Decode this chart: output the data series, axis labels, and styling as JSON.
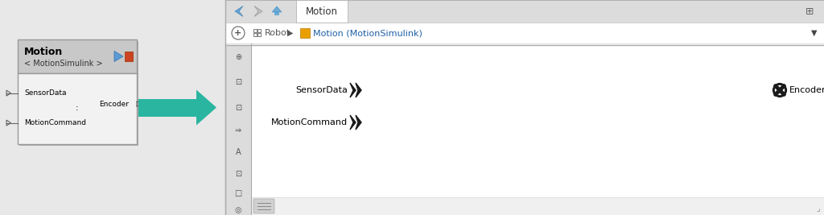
{
  "bg_color": "#e8e8e8",
  "block_title": "Motion",
  "block_subtitle": "< MotionSimulink >",
  "block_inputs": [
    "SensorData",
    "MotionCommand"
  ],
  "block_output": "Encoder",
  "arrow_color": "#2ab5a0",
  "toolbar_tab": "Motion",
  "right_inports": [
    "SensorData",
    "MotionCommand"
  ],
  "right_outport": "Encoder",
  "toolbar_bg": "#dcdcdc",
  "sidebar_bg": "#dcdcdc",
  "white": "#ffffff",
  "block_border": "#999999",
  "block_title_bg": "#c8c8c8",
  "block_body_bg": "#f2f2f2",
  "icon_blue": "#5b9bd5",
  "icon_orange": "#c0392b",
  "port_color": "#555555",
  "breadcrumb_blue": "#1f5fa6"
}
